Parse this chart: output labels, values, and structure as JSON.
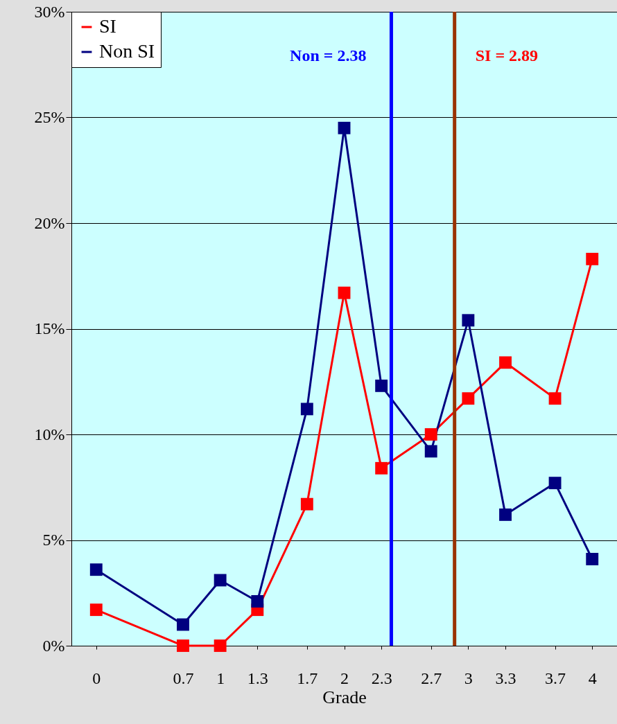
{
  "chart_data": {
    "type": "line",
    "xlabel": "Grade",
    "x": [
      0,
      0.7,
      1,
      1.3,
      1.7,
      2,
      2.3,
      2.7,
      3,
      3.3,
      3.7,
      4
    ],
    "series": [
      {
        "name": "SI",
        "color": "#ff0000",
        "values": [
          1.7,
          0,
          0,
          1.7,
          6.7,
          16.7,
          8.4,
          10.0,
          11.7,
          13.4,
          11.7,
          18.3
        ]
      },
      {
        "name": "Non SI",
        "color": "#000080",
        "values": [
          3.6,
          1.0,
          3.1,
          2.1,
          11.2,
          24.5,
          12.3,
          9.2,
          15.4,
          6.2,
          7.7,
          4.1
        ]
      }
    ],
    "xlim": [
      -0.2,
      4.2
    ],
    "xticks": [
      0,
      0.7,
      1,
      1.3,
      1.7,
      2,
      2.3,
      2.7,
      3,
      3.3,
      3.7,
      4
    ],
    "ylim": [
      0,
      30
    ],
    "yticks": [
      {
        "value": 0,
        "label": "0%"
      },
      {
        "value": 5,
        "label": "5%"
      },
      {
        "value": 10,
        "label": "10%"
      },
      {
        "value": 15,
        "label": "15%"
      },
      {
        "value": 20,
        "label": "20%"
      },
      {
        "value": 25,
        "label": "25%"
      },
      {
        "value": 30,
        "label": "30%"
      }
    ],
    "ref_lines": [
      {
        "axis": "x",
        "value": 2.38,
        "label": "Non = 2.38",
        "color": "#0000ff"
      },
      {
        "axis": "x",
        "value": 2.89,
        "label": "SI = 2.89",
        "color": "#993300"
      }
    ],
    "grid": "y",
    "legend": "top left",
    "marker": "square",
    "line_style": "solid"
  }
}
